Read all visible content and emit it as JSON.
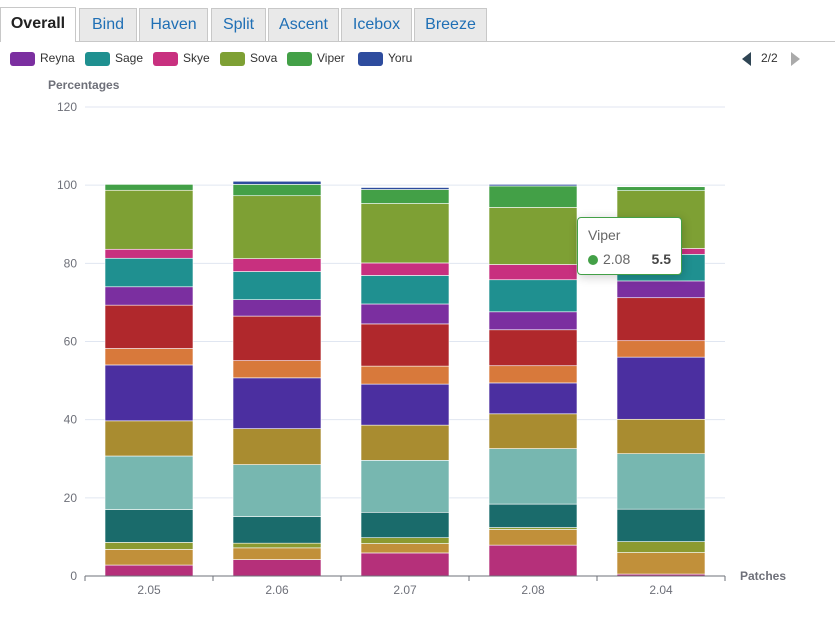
{
  "tabs": [
    {
      "label": "Overall",
      "active": true
    },
    {
      "label": "Bind",
      "active": false
    },
    {
      "label": "Haven",
      "active": false
    },
    {
      "label": "Split",
      "active": false
    },
    {
      "label": "Ascent",
      "active": false
    },
    {
      "label": "Icebox",
      "active": false
    },
    {
      "label": "Breeze",
      "active": false
    }
  ],
  "legend": {
    "items": [
      {
        "name": "Reyna",
        "color": "#7b2fa0"
      },
      {
        "name": "Sage",
        "color": "#1f9090"
      },
      {
        "name": "Skye",
        "color": "#c8307f"
      },
      {
        "name": "Sova",
        "color": "#7ea034"
      },
      {
        "name": "Viper",
        "color": "#43a047"
      },
      {
        "name": "Yoru",
        "color": "#2e4c9e"
      }
    ],
    "page": "2/2"
  },
  "tooltip": {
    "title": "Viper",
    "name": "2.08",
    "value": "5.5",
    "color": "#43a047"
  },
  "chart_data": {
    "type": "bar",
    "stacked": true,
    "ylabel": "Percentages",
    "xlabel": "Patches",
    "ylim": [
      0,
      120
    ],
    "yticks": [
      0,
      20,
      40,
      60,
      80,
      100,
      120
    ],
    "categories": [
      "2.05",
      "2.06",
      "2.07",
      "2.08",
      "2.04"
    ],
    "grid": true,
    "legend_position": "top-left",
    "series": [
      {
        "color": "#b5307a",
        "values": [
          2.8,
          4.2,
          5.9,
          7.9,
          0.5
        ]
      },
      {
        "color": "#c1903a",
        "values": [
          4.0,
          3.0,
          2.4,
          4.0,
          5.5
        ]
      },
      {
        "color": "#8c9a30",
        "values": [
          1.8,
          1.2,
          1.5,
          0.5,
          2.8
        ]
      },
      {
        "color": "#1a6b6b",
        "values": [
          8.4,
          6.8,
          6.5,
          6.0,
          8.3
        ]
      },
      {
        "color": "#77b7b0",
        "values": [
          13.7,
          13.3,
          13.3,
          14.2,
          14.2
        ]
      },
      {
        "color": "#a98c30",
        "values": [
          9.0,
          9.2,
          9.0,
          8.9,
          8.8
        ]
      },
      {
        "color": "#4b2fa0",
        "values": [
          14.3,
          13.0,
          10.5,
          7.9,
          15.9
        ]
      },
      {
        "color": "#d8793b",
        "values": [
          4.2,
          4.4,
          4.6,
          4.4,
          4.2
        ]
      },
      {
        "color": "#b0282c",
        "values": [
          11.1,
          11.4,
          10.8,
          9.2,
          11.0
        ]
      },
      {
        "name": "Reyna",
        "color": "#7b2fa0",
        "values": [
          4.7,
          4.2,
          5.1,
          4.6,
          4.3
        ]
      },
      {
        "name": "Sage",
        "color": "#1f9090",
        "values": [
          7.3,
          7.2,
          7.3,
          8.2,
          6.8
        ]
      },
      {
        "name": "Skye",
        "color": "#c8307f",
        "values": [
          2.3,
          3.3,
          3.2,
          3.9,
          1.5
        ]
      },
      {
        "name": "Sova",
        "color": "#7ea034",
        "values": [
          15.1,
          16.1,
          15.2,
          14.6,
          14.8
        ]
      },
      {
        "name": "Viper",
        "color": "#43a047",
        "values": [
          1.5,
          2.9,
          3.6,
          5.5,
          1.0
        ]
      },
      {
        "name": "Yoru",
        "color": "#2e4c9e",
        "values": [
          0.0,
          0.8,
          0.5,
          0.4,
          0.0
        ]
      }
    ]
  }
}
